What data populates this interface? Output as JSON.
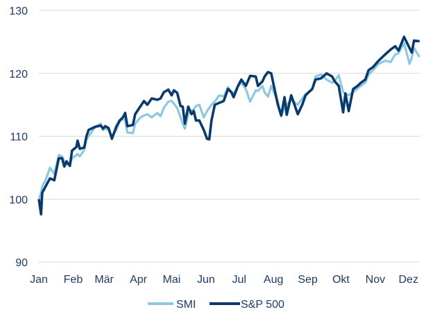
{
  "chart_data": {
    "type": "line",
    "title": "",
    "xlabel": "",
    "ylabel": "",
    "ylim": [
      90,
      130
    ],
    "yticks": [
      "90",
      "100",
      "110",
      "120",
      "130"
    ],
    "xticks": [
      "Jan",
      "Feb",
      "Mär",
      "Apr",
      "Mai",
      "Jun",
      "Jul",
      "Aug",
      "Sep",
      "Okt",
      "Nov",
      "Dez"
    ],
    "grid": "horizontal",
    "legend_position": "bottom",
    "x": [
      "01-01",
      "01-03",
      "01-04",
      "01-07",
      "01-11",
      "01-15",
      "01-19",
      "01-22",
      "01-24",
      "01-26",
      "01-29",
      "01-31",
      "02-04",
      "02-05",
      "02-07",
      "02-11",
      "02-13",
      "02-15",
      "02-21",
      "02-26",
      "02-28",
      "03-02",
      "03-05",
      "03-08",
      "03-12",
      "03-15",
      "03-18",
      "03-20",
      "03-22",
      "03-27",
      "03-29",
      "04-03",
      "04-06",
      "04-09",
      "04-13",
      "04-18",
      "04-21",
      "04-24",
      "04-28",
      "05-01",
      "05-03",
      "05-06",
      "05-09",
      "05-11",
      "05-13",
      "05-16",
      "05-19",
      "05-21",
      "05-23",
      "05-26",
      "05-30",
      "06-02",
      "06-04",
      "06-06",
      "06-09",
      "06-13",
      "06-17",
      "06-21",
      "06-24",
      "06-26",
      "06-30",
      "07-03",
      "07-07",
      "07-11",
      "07-16",
      "07-18",
      "07-22",
      "07-24",
      "07-27",
      "07-30",
      "08-05",
      "08-08",
      "08-11",
      "08-13",
      "08-17",
      "08-23",
      "08-27",
      "08-30",
      "09-05",
      "09-08",
      "09-13",
      "09-18",
      "09-23",
      "09-25",
      "09-29",
      "10-03",
      "10-05",
      "10-08",
      "10-12",
      "10-16",
      "10-19",
      "10-23",
      "10-26",
      "10-30",
      "11-04",
      "11-10",
      "11-15",
      "11-19",
      "11-22",
      "11-27",
      "12-02",
      "12-04",
      "12-06",
      "12-11"
    ],
    "series": [
      {
        "name": "SMI",
        "color": "#8cc8e2",
        "values": [
          100,
          101,
          102,
          103,
          105,
          104,
          107,
          106.8,
          106,
          105.5,
          105.5,
          106.5,
          107,
          107.2,
          106.8,
          107.8,
          109.5,
          110,
          111.5,
          112,
          111,
          111.2,
          111,
          110,
          111,
          112.3,
          112.8,
          112.5,
          110.6,
          110.5,
          112,
          113,
          113.3,
          113.5,
          113,
          113.7,
          113.2,
          114.5,
          115.5,
          115.6,
          115.2,
          114.5,
          113,
          112,
          111.2,
          113.5,
          114,
          114.3,
          114.8,
          115,
          113,
          114,
          114.5,
          115,
          115.5,
          116.5,
          116.3,
          117.8,
          117,
          116.8,
          118,
          118.5,
          117.5,
          115.5,
          117.3,
          117.2,
          118,
          117,
          116.3,
          118,
          115.5,
          113.2,
          114.5,
          115,
          115.8,
          115,
          116,
          116.7,
          117.5,
          119.5,
          119.8,
          119,
          118.5,
          118.7,
          119.7,
          117,
          116.8,
          116.5,
          117,
          117.6,
          118,
          118.5,
          119.8,
          120.5,
          121.5,
          122,
          121.8,
          123,
          123.2,
          124.8,
          121.5,
          122.5,
          124,
          122.6
        ]
      },
      {
        "name": "S&P 500",
        "color": "#0a3a6b",
        "values": [
          100,
          97.6,
          101,
          102,
          103.3,
          103,
          106.5,
          106.5,
          105.2,
          106,
          105.3,
          107.7,
          108.3,
          109.3,
          108,
          108.2,
          110,
          111,
          111.5,
          111.7,
          111.2,
          111.6,
          111.3,
          109.6,
          111.5,
          112.5,
          113,
          113.7,
          111.6,
          111.8,
          113.5,
          114.8,
          115.6,
          115,
          116,
          115.8,
          116,
          117,
          117.4,
          116.5,
          117.3,
          116.9,
          114.8,
          114.7,
          112,
          114.7,
          113.5,
          114,
          112.5,
          112.5,
          111,
          109.6,
          109.5,
          112.5,
          115,
          115.3,
          115.6,
          117.5,
          117,
          116.2,
          118,
          119,
          118,
          119.6,
          119.5,
          118,
          118.7,
          119.5,
          120.2,
          120,
          115,
          113.3,
          116.2,
          113.4,
          116.5,
          113.5,
          115,
          116.5,
          117.5,
          119,
          119.2,
          120,
          119.5,
          118.8,
          118,
          113.8,
          116.8,
          114,
          117.5,
          118,
          118.5,
          119,
          120.5,
          121,
          122,
          123,
          123.8,
          124.3,
          123.6,
          125.8,
          124,
          123.3,
          125.2,
          125.1
        ]
      }
    ]
  }
}
